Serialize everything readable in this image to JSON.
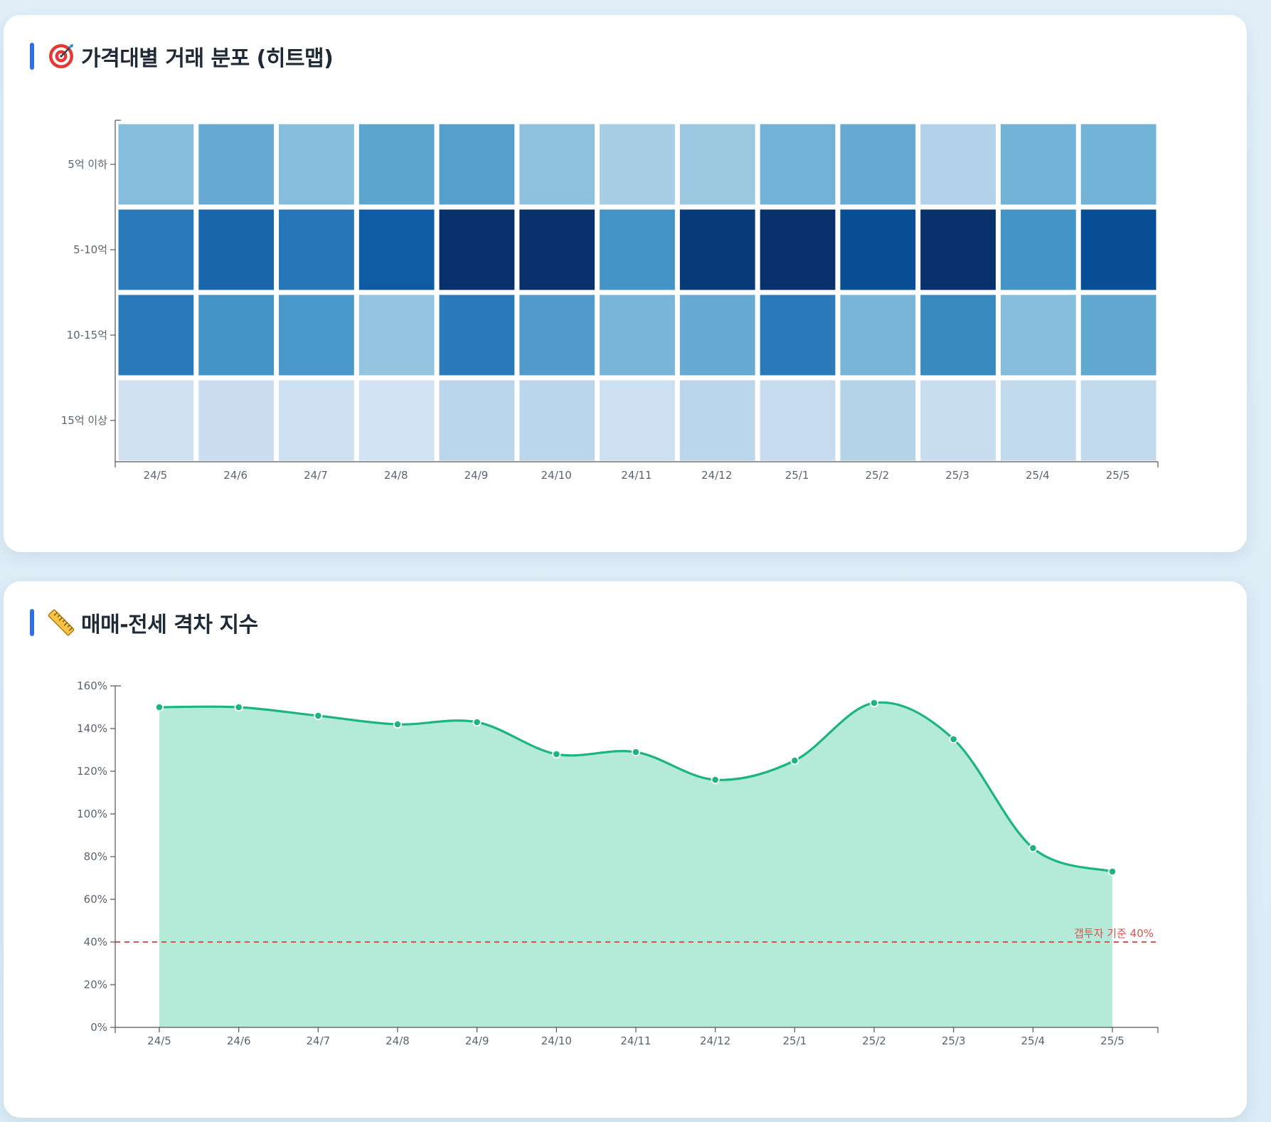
{
  "heatmap_card": {
    "title": "가격대별 거래 분포 (히트맵)",
    "icon": "target-icon"
  },
  "gap_card": {
    "title": "매매-전세 격차 지수",
    "icon": "ruler-icon"
  },
  "colors": {
    "accent": "#2f6fe0",
    "line": "#1db57e",
    "area": "#b3ead8",
    "reference": "#d9534f",
    "heat_low": "#deebf7",
    "heat_high": "#08306b"
  },
  "chart_data": [
    {
      "type": "heatmap",
      "title": "가격대별 거래 분포 (히트맵)",
      "x_categories": [
        "24/5",
        "24/6",
        "24/7",
        "24/8",
        "24/9",
        "24/10",
        "24/11",
        "24/12",
        "25/1",
        "25/2",
        "25/3",
        "25/4",
        "25/5"
      ],
      "y_categories": [
        "5억 이하",
        "5-10억",
        "10-15억",
        "15억 이상"
      ],
      "values": [
        [
          0.42,
          0.52,
          0.42,
          0.55,
          0.58,
          0.4,
          0.32,
          0.36,
          0.48,
          0.52,
          0.28,
          0.48,
          0.48
        ],
        [
          0.74,
          0.82,
          0.76,
          0.86,
          1.0,
          1.0,
          0.64,
          0.97,
          1.0,
          0.91,
          1.0,
          0.64,
          0.91
        ],
        [
          0.74,
          0.64,
          0.62,
          0.38,
          0.74,
          0.6,
          0.46,
          0.52,
          0.74,
          0.46,
          0.68,
          0.42,
          0.54
        ],
        [
          0.12,
          0.16,
          0.14,
          0.1,
          0.24,
          0.24,
          0.14,
          0.24,
          0.2,
          0.26,
          0.18,
          0.22,
          0.22
        ]
      ],
      "value_scale": [
        0,
        1
      ],
      "color_range": [
        "#deebf7",
        "#08306b"
      ]
    },
    {
      "type": "area",
      "title": "매매-전세 격차 지수",
      "x": [
        "24/5",
        "24/6",
        "24/7",
        "24/8",
        "24/9",
        "24/10",
        "24/11",
        "24/12",
        "25/1",
        "25/2",
        "25/3",
        "25/4",
        "25/5"
      ],
      "series": [
        {
          "values": [
            150,
            150,
            146,
            142,
            143,
            128,
            129,
            116,
            125,
            152,
            135,
            84,
            73
          ]
        }
      ],
      "ylim": [
        0,
        160
      ],
      "y_ticks": [
        0,
        20,
        40,
        60,
        80,
        100,
        120,
        140,
        160
      ],
      "y_tick_suffix": "%",
      "reference_line": {
        "value": 40,
        "label": "갭투자 기준 40%",
        "style": "dashed"
      },
      "grid": false,
      "legend": "none"
    }
  ]
}
